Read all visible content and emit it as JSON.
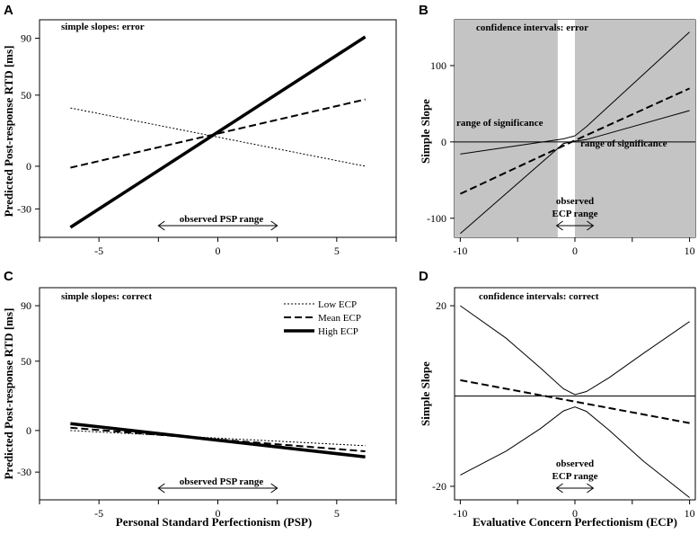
{
  "figure": {
    "panel_letters": [
      "A",
      "B",
      "C",
      "D"
    ]
  },
  "chart_data": [
    {
      "id": "A",
      "type": "line",
      "annotation": "simple slopes: error",
      "xlabel": "",
      "ylabel": "Predicted Post-response RTD [ms]",
      "xlim": [
        -7.5,
        7.5
      ],
      "ylim": [
        -50,
        103
      ],
      "xticks": [
        "-5",
        "0",
        "5"
      ],
      "yticks": [
        "-30",
        "0",
        "50",
        "90"
      ],
      "range_label": "observed  PSP range",
      "range": [
        -2.5,
        2.5
      ],
      "series": [
        {
          "name": "Low ECP",
          "style": "dotted",
          "x": [
            -6.2,
            6.2
          ],
          "y": [
            41,
            0
          ]
        },
        {
          "name": "Mean ECP",
          "style": "dashed",
          "x": [
            -6.2,
            6.2
          ],
          "y": [
            -1,
            47
          ]
        },
        {
          "name": "High ECP",
          "style": "solid-thick",
          "x": [
            -6.2,
            6.2
          ],
          "y": [
            -43,
            91
          ]
        }
      ]
    },
    {
      "id": "B",
      "type": "line",
      "annotation": "confidence intervals: error",
      "xlabel": "",
      "ylabel": "Simple Slope",
      "xlim": [
        -10.5,
        10.5
      ],
      "ylim": [
        -125,
        160
      ],
      "xticks": [
        "-10",
        "0",
        "10"
      ],
      "yticks": [
        "-100",
        "0",
        "100"
      ],
      "significance_labels": [
        "range of significance",
        "range of significance"
      ],
      "nonsignificant_region": [
        -1.5,
        0
      ],
      "range_label": [
        "observed",
        "ECP range"
      ],
      "range": [
        -1.6,
        1.6
      ],
      "series": [
        {
          "name": "simple slope",
          "style": "dashed",
          "x": [
            -10,
            0,
            10
          ],
          "y": [
            -68,
            2,
            70
          ]
        },
        {
          "name": "upper bound",
          "style": "solid",
          "x": [
            -10,
            -1,
            0,
            1,
            10
          ],
          "y": [
            -16,
            4,
            8,
            20,
            144
          ]
        },
        {
          "name": "lower bound",
          "style": "solid",
          "x": [
            -10,
            -1,
            0,
            1,
            10
          ],
          "y": [
            -120,
            -2,
            1,
            3,
            41
          ]
        },
        {
          "name": "zero line",
          "style": "solid",
          "x": [
            -10.5,
            10.5
          ],
          "y": [
            0,
            0
          ]
        }
      ]
    },
    {
      "id": "C",
      "type": "line",
      "annotation": "simple slopes: correct",
      "xlabel": "Personal Standard Perfectionism (PSP)",
      "ylabel": "Predicted Post-response RTD [ms]",
      "xlim": [
        -7.5,
        7.5
      ],
      "ylim": [
        -50,
        103
      ],
      "xticks": [
        "-5",
        "0",
        "5"
      ],
      "yticks": [
        "-30",
        "0",
        "50",
        "90"
      ],
      "range_label": "observed  PSP range",
      "range": [
        -2.5,
        2.5
      ],
      "legend": {
        "position": "top-right",
        "entries": [
          "Low ECP",
          "Mean ECP",
          "High ECP"
        ]
      },
      "series": [
        {
          "name": "Low ECP",
          "style": "dotted",
          "x": [
            -6.2,
            6.2
          ],
          "y": [
            0,
            -11
          ]
        },
        {
          "name": "Mean ECP",
          "style": "dashed",
          "x": [
            -6.2,
            6.2
          ],
          "y": [
            2,
            -15
          ]
        },
        {
          "name": "High ECP",
          "style": "solid-thick",
          "x": [
            -6.2,
            6.2
          ],
          "y": [
            5,
            -19
          ]
        }
      ]
    },
    {
      "id": "D",
      "type": "line",
      "annotation": "confidence intervals: correct",
      "xlabel": "Evaluative Concern Perfectionism (ECP)",
      "ylabel": "Simple Slope",
      "xlim": [
        -10.5,
        10.5
      ],
      "ylim": [
        -23,
        24
      ],
      "xticks": [
        "-10",
        "0",
        "10"
      ],
      "yticks": [
        "-20",
        "20"
      ],
      "range_label": [
        "observed",
        "ECP range"
      ],
      "range": [
        -1.6,
        1.6
      ],
      "series": [
        {
          "name": "simple slope",
          "style": "dashed",
          "x": [
            -10,
            10
          ],
          "y": [
            3.5,
            -6
          ]
        },
        {
          "name": "upper bound",
          "style": "solid",
          "x": [
            -10,
            -6,
            -3,
            -1,
            0,
            1,
            3,
            6,
            10
          ],
          "y": [
            20,
            12.8,
            6.2,
            1.6,
            0.3,
            1.0,
            4.1,
            9.5,
            16.5
          ]
        },
        {
          "name": "lower bound",
          "style": "solid",
          "x": [
            -10,
            -6,
            -3,
            -1,
            0,
            1,
            3,
            6,
            10
          ],
          "y": [
            -17.5,
            -12.2,
            -7.2,
            -3.3,
            -2.4,
            -3.4,
            -7.6,
            -14.5,
            -22.5
          ]
        },
        {
          "name": "zero line",
          "style": "solid",
          "x": [
            -10.5,
            10.5
          ],
          "y": [
            0,
            0
          ]
        }
      ]
    }
  ]
}
